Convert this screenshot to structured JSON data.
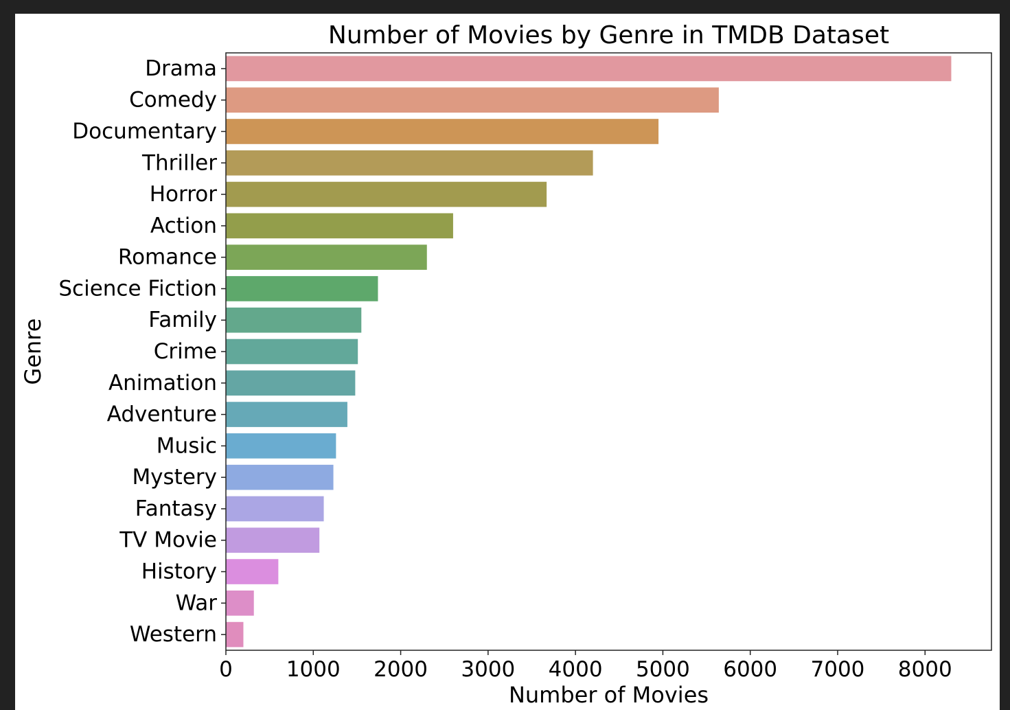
{
  "chart_data": {
    "type": "bar",
    "orientation": "horizontal",
    "title": "Number of Movies by Genre in TMDB Dataset",
    "xlabel": "Number of Movies",
    "ylabel": "Genre",
    "xlim": [
      0,
      8760
    ],
    "xticks": [
      0,
      1000,
      2000,
      3000,
      4000,
      5000,
      6000,
      7000,
      8000
    ],
    "grid": false,
    "legend": "none",
    "categories": [
      "Drama",
      "Comedy",
      "Documentary",
      "Thriller",
      "Horror",
      "Action",
      "Romance",
      "Science Fiction",
      "Family",
      "Crime",
      "Animation",
      "Adventure",
      "Music",
      "Mystery",
      "Fantasy",
      "TV Movie",
      "History",
      "War",
      "Western"
    ],
    "values": [
      8300,
      5640,
      4950,
      4200,
      3670,
      2600,
      2300,
      1740,
      1550,
      1510,
      1480,
      1390,
      1260,
      1230,
      1120,
      1070,
      600,
      320,
      200
    ],
    "colors": [
      "#e1989f",
      "#dd9a82",
      "#cd9556",
      "#b39b58",
      "#a29b4f",
      "#939e4b",
      "#7ca657",
      "#5ea86b",
      "#63a88c",
      "#62a89a",
      "#64a6a4",
      "#66a9b7",
      "#6aacd0",
      "#8eaae1",
      "#aba6e4",
      "#c19be0",
      "#db8edf",
      "#dd8ec8",
      "#e08dbd"
    ]
  }
}
